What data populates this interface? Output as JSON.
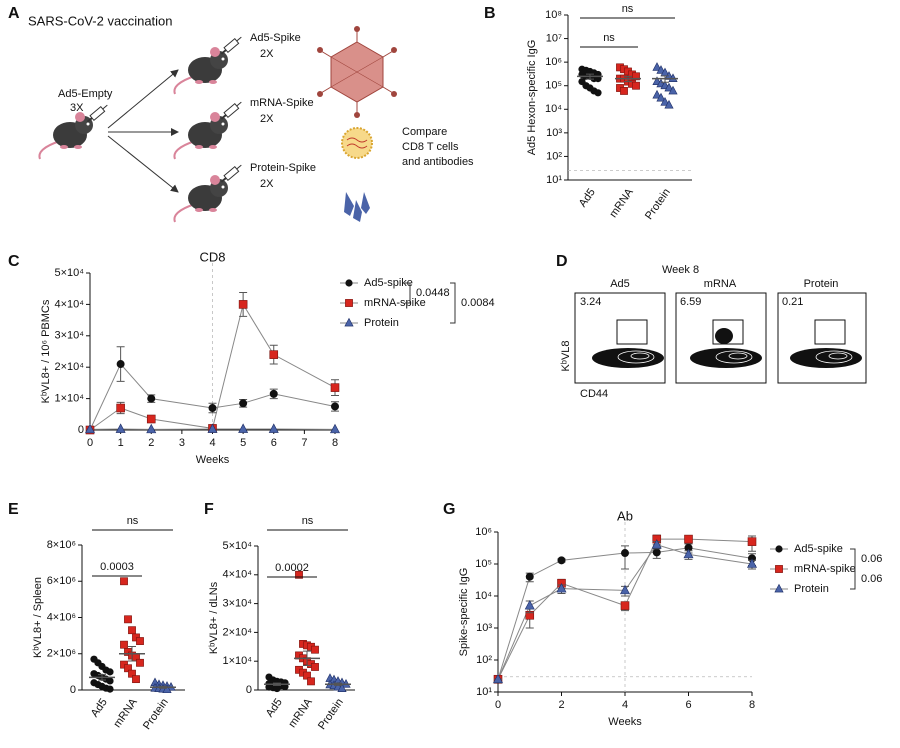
{
  "panel_labels": [
    "A",
    "B",
    "C",
    "D",
    "E",
    "F",
    "G"
  ],
  "schematic": {
    "title": "SARS-CoV-2 vaccination",
    "prime": {
      "name": "Ad5-Empty",
      "doses": "3X"
    },
    "boosts": [
      {
        "name": "Ad5-Spike",
        "doses": "2X"
      },
      {
        "name": "mRNA-Spike",
        "doses": "2X"
      },
      {
        "name": "Protein-Spike",
        "doses": "2X"
      }
    ],
    "readout": [
      "Compare",
      "CD8 T cells",
      "and antibodies"
    ]
  },
  "flow": {
    "title": "Week 8",
    "ylabel": "KᵇVL8",
    "xlabel": "CD44",
    "plots": [
      {
        "group": "Ad5",
        "percent": 3.24
      },
      {
        "group": "mRNA",
        "percent": 6.59
      },
      {
        "group": "Protein",
        "percent": 0.21
      }
    ]
  },
  "chart_data": [
    {
      "type": "dot",
      "ylabel": "Ad5 Hexon-specific IgG",
      "categories": [
        "Ad5",
        "mRNA",
        "Protein"
      ],
      "colors": [
        "#111111",
        "#d7261e",
        "#4a63a8"
      ],
      "markers": [
        "circle",
        "square",
        "triangle"
      ],
      "values": [
        [
          500000,
          450000,
          400000,
          350000,
          300000,
          300000,
          250000,
          250000,
          200000,
          200000,
          150000,
          100000,
          80000,
          60000,
          50000
        ],
        [
          600000,
          500000,
          400000,
          300000,
          250000,
          200000,
          200000,
          150000,
          120000,
          100000,
          80000,
          60000
        ],
        [
          600000,
          450000,
          350000,
          250000,
          200000,
          150000,
          120000,
          100000,
          80000,
          60000,
          40000,
          30000,
          20000,
          15000
        ]
      ],
      "means": [
        250000,
        200000,
        200000
      ],
      "errors": [
        60000,
        50000,
        60000
      ],
      "log_y": true,
      "ylim": [
        10,
        100000000
      ],
      "yticks": [
        {
          "value": 10,
          "label": "10¹"
        },
        {
          "value": 100,
          "label": "10²"
        },
        {
          "value": 1000,
          "label": "10³"
        },
        {
          "value": 10000,
          "label": "10⁴"
        },
        {
          "value": 100000,
          "label": "10⁵"
        },
        {
          "value": 1000000,
          "label": "10⁶"
        },
        {
          "value": 10000000,
          "label": "10⁷"
        },
        {
          "value": 100000000,
          "label": "10⁸"
        }
      ],
      "reference_y": 25,
      "comparisons": [
        {
          "label": "ns",
          "groups": [
            "Ad5",
            "Protein"
          ]
        },
        {
          "label": "ns",
          "groups": [
            "Ad5",
            "mRNA"
          ]
        }
      ]
    },
    {
      "type": "line",
      "title": "CD8",
      "xlabel": "Weeks",
      "ylabel": "KᵇVL8+ / 10⁶ PBMCs",
      "x": [
        0,
        1,
        2,
        4,
        5,
        6,
        8
      ],
      "xlim": [
        0,
        8
      ],
      "xticks": [
        0,
        1,
        2,
        3,
        4,
        5,
        6,
        7,
        8
      ],
      "ylim": [
        0,
        50000
      ],
      "yticks": [
        0,
        {
          "value": 10000,
          "label": "1×10⁴"
        },
        {
          "value": 20000,
          "label": "2×10⁴"
        },
        {
          "value": 30000,
          "label": "3×10⁴"
        },
        {
          "value": 40000,
          "label": "4×10⁴"
        },
        {
          "value": 50000,
          "label": "5×10⁴"
        }
      ],
      "reference_x": 4,
      "series": [
        {
          "name": "Ad5-spike",
          "color": "#111111",
          "marker": "circle",
          "values": [
            0,
            21000,
            10000,
            7000,
            8500,
            11500,
            7500
          ],
          "errors": [
            0,
            5500,
            1200,
            1500,
            1200,
            1500,
            1500
          ]
        },
        {
          "name": "mRNA-spike",
          "color": "#d7261e",
          "marker": "square",
          "values": [
            0,
            7000,
            3500,
            500,
            40000,
            24000,
            13500
          ],
          "errors": [
            0,
            1800,
            500,
            300,
            3800,
            3000,
            2500
          ]
        },
        {
          "name": "Protein",
          "color": "#4a63a8",
          "marker": "triangle",
          "values": [
            200,
            300,
            200,
            300,
            300,
            300,
            200
          ]
        }
      ],
      "comparisons": [
        {
          "label": "0.0448",
          "groups": [
            "Ad5-spike",
            "mRNA-spike"
          ]
        },
        {
          "label": "0.0084",
          "groups": [
            "Ad5-spike",
            "Protein"
          ]
        }
      ]
    },
    {
      "type": "dot",
      "ylabel": "KᵇVL8+ / Spleen",
      "categories": [
        "Ad5",
        "mRNA",
        "Protein"
      ],
      "colors": [
        "#111111",
        "#d7261e",
        "#4a63a8"
      ],
      "markers": [
        "circle",
        "square",
        "triangle"
      ],
      "values": [
        [
          1700000,
          1500000,
          1300000,
          1100000,
          1000000,
          900000,
          800000,
          700000,
          600000,
          500000,
          400000,
          300000,
          200000,
          100000,
          50000
        ],
        [
          6000000,
          3900000,
          3300000,
          2900000,
          2700000,
          2500000,
          2100000,
          1900000,
          1800000,
          1500000,
          1400000,
          1200000,
          900000,
          600000
        ],
        [
          400000,
          300000,
          250000,
          200000,
          150000,
          100000,
          80000,
          50000,
          20000
        ]
      ],
      "means": [
        700000,
        2000000,
        150000
      ],
      "errors": [
        150000,
        400000,
        50000
      ],
      "ylim": [
        0,
        8000000
      ],
      "yticks": [
        0,
        {
          "value": 2000000,
          "label": "2×10⁶"
        },
        {
          "value": 4000000,
          "label": "4×10⁶"
        },
        {
          "value": 6000000,
          "label": "6×10⁶"
        },
        {
          "value": 8000000,
          "label": "8×10⁶"
        }
      ],
      "comparisons": [
        {
          "label": "ns",
          "groups": [
            "Ad5",
            "Protein"
          ]
        },
        {
          "label": "0.0003",
          "groups": [
            "Ad5",
            "mRNA"
          ]
        }
      ]
    },
    {
      "type": "dot",
      "ylabel": "KᵇVL8+ / dLNs",
      "categories": [
        "Ad5",
        "mRNA",
        "Protein"
      ],
      "colors": [
        "#111111",
        "#d7261e",
        "#4a63a8"
      ],
      "markers": [
        "circle",
        "square",
        "triangle"
      ],
      "values": [
        [
          4500,
          3500,
          3000,
          2800,
          2500,
          2200,
          2000,
          1800,
          1500,
          1200,
          1000,
          800,
          500
        ],
        [
          40000,
          16000,
          15500,
          15000,
          14000,
          12000,
          11000,
          10000,
          9000,
          8000,
          7000,
          6000,
          5000,
          3000
        ],
        [
          4000,
          3500,
          3000,
          2500,
          2000,
          1800,
          1500,
          1000,
          500
        ]
      ],
      "means": [
        2000,
        11000,
        2000
      ],
      "errors": [
        400,
        2500,
        400
      ],
      "ylim": [
        0,
        50000
      ],
      "yticks": [
        0,
        {
          "value": 10000,
          "label": "1×10⁴"
        },
        {
          "value": 20000,
          "label": "2×10⁴"
        },
        {
          "value": 30000,
          "label": "3×10⁴"
        },
        {
          "value": 40000,
          "label": "4×10⁴"
        },
        {
          "value": 50000,
          "label": "5×10⁴"
        }
      ],
      "comparisons": [
        {
          "label": "ns",
          "groups": [
            "Ad5",
            "Protein"
          ]
        },
        {
          "label": "0.0002",
          "groups": [
            "Ad5",
            "mRNA"
          ]
        }
      ]
    },
    {
      "type": "line",
      "title": "Ab",
      "xlabel": "Weeks",
      "ylabel": "Spike-specific IgG",
      "x": [
        0,
        1,
        2,
        4,
        5,
        6,
        8
      ],
      "xlim": [
        0,
        8
      ],
      "xticks": [
        0,
        2,
        4,
        6,
        8
      ],
      "log_y": true,
      "ylim": [
        10,
        1000000
      ],
      "yticks": [
        {
          "value": 10,
          "label": "10¹"
        },
        {
          "value": 100,
          "label": "10²"
        },
        {
          "value": 1000,
          "label": "10³"
        },
        {
          "value": 10000,
          "label": "10⁴"
        },
        {
          "value": 100000,
          "label": "10⁵"
        },
        {
          "value": 1000000,
          "label": "10⁶"
        }
      ],
      "reference_x": 4,
      "reference_y": 30,
      "series": [
        {
          "name": "Ad5-spike",
          "color": "#111111",
          "marker": "circle",
          "values": [
            25,
            40000,
            130000,
            220000,
            230000,
            320000,
            150000
          ],
          "errors": [
            0,
            12000,
            15000,
            150000,
            80000,
            100000,
            60000
          ]
        },
        {
          "name": "mRNA-spike",
          "color": "#d7261e",
          "marker": "square",
          "values": [
            25,
            2500,
            25000,
            5000,
            600000,
            600000,
            500000
          ],
          "errors": [
            0,
            1500,
            8000,
            1500,
            200000,
            150000,
            250000
          ]
        },
        {
          "name": "Protein",
          "color": "#4a63a8",
          "marker": "triangle",
          "values": [
            25,
            5000,
            17000,
            15000,
            400000,
            200000,
            100000
          ],
          "errors": [
            0,
            2000,
            5000,
            5000,
            100000,
            60000,
            30000
          ]
        }
      ],
      "comparisons": [
        {
          "label": "0.06",
          "groups": [
            "Ad5-spike",
            "mRNA-spike"
          ]
        },
        {
          "label": "0.06",
          "groups": [
            "mRNA-spike",
            "Protein"
          ]
        }
      ]
    }
  ]
}
